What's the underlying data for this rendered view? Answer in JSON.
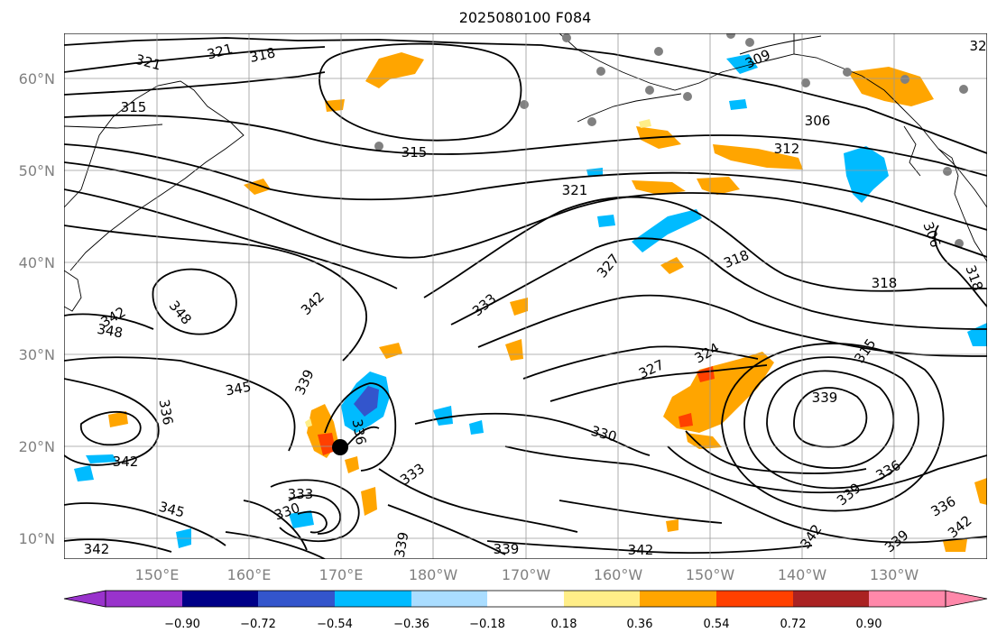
{
  "title": "2025080100 F084",
  "lat_labels": [
    "60°N",
    "50°N",
    "40°N",
    "30°N",
    "20°N",
    "10°N"
  ],
  "lon_labels": [
    "150°E",
    "160°E",
    "170°E",
    "180°W",
    "170°W",
    "160°W",
    "150°W",
    "140°W",
    "130°W"
  ],
  "colorbar": {
    "tick_labels": [
      "−0.90",
      "−0.72",
      "−0.54",
      "−0.36",
      "−0.18",
      "0.18",
      "0.36",
      "0.54",
      "0.72",
      "0.90"
    ],
    "colors": [
      "#9933cc",
      "#000088",
      "#3355cc",
      "#00bbff",
      "#aaddff",
      "#ffffff",
      "#ffee88",
      "#ffa500",
      "#ff4000",
      "#aa2222",
      "#ff88aa"
    ]
  },
  "contour_labels": [
    "321",
    "321",
    "318",
    "315",
    "315",
    "321",
    "312",
    "306",
    "309",
    "306",
    "318",
    "318",
    "318",
    "327",
    "333",
    "342",
    "348",
    "342",
    "348",
    "345",
    "336",
    "339",
    "342",
    "345",
    "333",
    "330",
    "330",
    "327",
    "324",
    "315",
    "339",
    "336",
    "339",
    "336",
    "342",
    "342",
    "339",
    "339",
    "342",
    "342",
    "339",
    "333",
    "336",
    "32"
  ],
  "shading_colors": {
    "orange": "#ffa500",
    "red": "#ff4000",
    "yellow": "#ffee88",
    "light_blue": "#00bbff",
    "blue": "#3355cc",
    "pale_blue": "#aaddff"
  },
  "marker_colors": {
    "stations": "#808080",
    "center": "#000000"
  }
}
